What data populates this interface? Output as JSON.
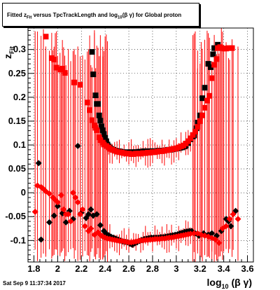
{
  "footer": {
    "timestamp": "Sat Sep  9 11:37:34 2017"
  },
  "colors": {
    "black_series": "#000000",
    "red_series": "#ff0000",
    "axis": "#000000",
    "grid": "#000000"
  },
  "chart_data": {
    "type": "scatter",
    "title": "Fitted z_Fit versus TpcTrackLength and log10(βγ) for Global proton",
    "title_parts": {
      "p1": "Fitted  z",
      "sub1": "Fit",
      "p2": " versus TpcTrackLength and log",
      "sub2": "10",
      "p3": "(β γ) for Global proton"
    },
    "xlabel": "log10(β γ)",
    "xlabel_parts": {
      "main": "log",
      "sub": "10",
      "rest": "(β γ)"
    },
    "ylabel": "z_Fit",
    "ylabel_parts": {
      "main": "z",
      "sub": "Fit"
    },
    "xlim": [
      1.75,
      3.65
    ],
    "ylim": [
      -0.145,
      0.345
    ],
    "grid": true,
    "x_ticks": [
      1.8,
      2.0,
      2.2,
      2.4,
      2.6,
      2.8,
      3.0,
      3.2,
      3.4,
      3.6
    ],
    "x_tick_labels": [
      "1.8",
      "2",
      "2.2",
      "2.4",
      "2.6",
      "2.8",
      "3",
      "3.2",
      "3.4",
      "3.6"
    ],
    "y_ticks": [
      -0.1,
      -0.05,
      0.0,
      0.05,
      0.1,
      0.15,
      0.2,
      0.25,
      0.3
    ],
    "y_tick_labels": [
      "-0.1",
      "-0.05",
      "0",
      "0.05",
      "0.1",
      "0.15",
      "0.2",
      "0.25",
      "0.3"
    ],
    "series": [
      {
        "marker": "square",
        "color": "#000000",
        "errors": "none",
        "points": [
          [
            2.29,
            0.295
          ],
          [
            2.3,
            0.248
          ],
          [
            2.32,
            0.204
          ],
          [
            2.33,
            0.186
          ],
          [
            2.34,
            0.186
          ],
          [
            2.35,
            0.162
          ],
          [
            2.36,
            0.151
          ],
          [
            2.37,
            0.139
          ],
          [
            2.38,
            0.131
          ],
          [
            2.39,
            0.123
          ],
          [
            2.4,
            0.115
          ],
          [
            2.41,
            0.108
          ],
          [
            2.42,
            0.101
          ],
          [
            2.43,
            0.097
          ],
          [
            2.44,
            0.094
          ],
          [
            2.45,
            0.092
          ],
          [
            2.47,
            0.09
          ],
          [
            2.49,
            0.088
          ],
          [
            2.51,
            0.087
          ],
          [
            2.53,
            0.086
          ],
          [
            2.55,
            0.085
          ],
          [
            2.57,
            0.084
          ],
          [
            2.59,
            0.085
          ],
          [
            2.61,
            0.084
          ],
          [
            2.63,
            0.085
          ],
          [
            2.65,
            0.085
          ],
          [
            2.67,
            0.085
          ],
          [
            2.69,
            0.086
          ],
          [
            2.71,
            0.086
          ],
          [
            2.73,
            0.087
          ],
          [
            2.75,
            0.086
          ],
          [
            2.77,
            0.087
          ],
          [
            2.79,
            0.087
          ],
          [
            2.81,
            0.087
          ],
          [
            2.83,
            0.087
          ],
          [
            2.85,
            0.088
          ],
          [
            2.87,
            0.088
          ],
          [
            2.89,
            0.088
          ],
          [
            2.91,
            0.089
          ],
          [
            2.93,
            0.09
          ],
          [
            2.95,
            0.09
          ],
          [
            2.97,
            0.091
          ],
          [
            2.99,
            0.092
          ],
          [
            3.01,
            0.093
          ],
          [
            3.03,
            0.094
          ],
          [
            3.05,
            0.095
          ],
          [
            3.07,
            0.097
          ],
          [
            3.08,
            0.099
          ],
          [
            3.1,
            0.104
          ],
          [
            3.12,
            0.112
          ],
          [
            3.14,
            0.118
          ],
          [
            3.15,
            0.12
          ],
          [
            3.16,
            0.128
          ],
          [
            3.17,
            0.135
          ],
          [
            3.18,
            0.147
          ],
          [
            3.2,
            0.162
          ],
          [
            3.22,
            0.198
          ],
          [
            3.24,
            0.22
          ],
          [
            3.27,
            0.27
          ],
          [
            3.29,
            0.263
          ],
          [
            3.31,
            0.29
          ],
          [
            3.32,
            0.303
          ],
          [
            3.35,
            0.31
          ]
        ]
      },
      {
        "marker": "square",
        "color": "#ff0000",
        "errors": "vertical",
        "points": [
          [
            1.9,
            0.327
          ],
          [
            1.95,
            0.282
          ],
          [
            1.97,
            0.279
          ],
          [
            1.99,
            0.262
          ],
          [
            2.02,
            0.258
          ],
          [
            2.04,
            0.26
          ],
          [
            2.06,
            0.251
          ],
          [
            2.14,
            0.231
          ],
          [
            2.19,
            0.226
          ],
          [
            2.25,
            0.189
          ],
          [
            2.27,
            0.173
          ],
          [
            2.29,
            0.152
          ],
          [
            2.31,
            0.141
          ],
          [
            2.32,
            0.136
          ],
          [
            2.33,
            0.131
          ],
          [
            2.35,
            0.116
          ],
          [
            2.36,
            0.11
          ],
          [
            2.38,
            0.105
          ],
          [
            2.39,
            0.101
          ],
          [
            2.41,
            0.098
          ],
          [
            2.43,
            0.095
          ],
          [
            2.44,
            0.092
          ],
          [
            2.46,
            0.09
          ],
          [
            2.48,
            0.088
          ],
          [
            2.5,
            0.086
          ],
          [
            2.52,
            0.085
          ],
          [
            2.54,
            0.084
          ],
          [
            2.56,
            0.083
          ],
          [
            2.58,
            0.082
          ],
          [
            2.6,
            0.082
          ],
          [
            2.62,
            0.081
          ],
          [
            2.64,
            0.081
          ],
          [
            2.66,
            0.082
          ],
          [
            2.68,
            0.082
          ],
          [
            2.7,
            0.082
          ],
          [
            2.72,
            0.083
          ],
          [
            2.74,
            0.083
          ],
          [
            2.76,
            0.084
          ],
          [
            2.78,
            0.084
          ],
          [
            2.8,
            0.085
          ],
          [
            2.82,
            0.085
          ],
          [
            2.84,
            0.086
          ],
          [
            2.86,
            0.087
          ],
          [
            2.88,
            0.087
          ],
          [
            2.9,
            0.088
          ],
          [
            2.92,
            0.089
          ],
          [
            2.94,
            0.09
          ],
          [
            2.96,
            0.091
          ],
          [
            2.98,
            0.092
          ],
          [
            3.0,
            0.093
          ],
          [
            3.02,
            0.095
          ],
          [
            3.04,
            0.097
          ],
          [
            3.06,
            0.099
          ],
          [
            3.08,
            0.103
          ],
          [
            3.1,
            0.108
          ],
          [
            3.12,
            0.114
          ],
          [
            3.14,
            0.121
          ],
          [
            3.16,
            0.128
          ],
          [
            3.18,
            0.138
          ],
          [
            3.2,
            0.15
          ],
          [
            3.22,
            0.162
          ],
          [
            3.24,
            0.178
          ],
          [
            3.26,
            0.193
          ],
          [
            3.28,
            0.203
          ],
          [
            3.3,
            0.24
          ],
          [
            3.32,
            0.268
          ],
          [
            3.34,
            0.28
          ],
          [
            3.35,
            0.303
          ],
          [
            3.37,
            0.305
          ],
          [
            3.38,
            0.303
          ],
          [
            3.4,
            0.302
          ],
          [
            3.42,
            0.302
          ],
          [
            3.44,
            0.303
          ],
          [
            3.47,
            0.303
          ]
        ]
      },
      {
        "marker": "diamond",
        "color": "#000000",
        "errors": "none",
        "points": [
          [
            1.84,
            0.062
          ],
          [
            1.86,
            -0.098
          ],
          [
            1.93,
            -0.062
          ],
          [
            1.97,
            -0.048
          ],
          [
            2.0,
            -0.028
          ],
          [
            2.04,
            -0.043
          ],
          [
            2.07,
            -0.062
          ],
          [
            2.1,
            -0.038
          ],
          [
            2.13,
            -0.055
          ],
          [
            2.17,
            0.098
          ],
          [
            2.2,
            -0.042
          ],
          [
            2.24,
            -0.053
          ],
          [
            2.26,
            -0.045
          ],
          [
            2.28,
            -0.035
          ],
          [
            2.3,
            -0.048
          ],
          [
            2.33,
            -0.045
          ],
          [
            2.36,
            -0.068
          ],
          [
            2.39,
            -0.08
          ],
          [
            2.41,
            -0.086
          ],
          [
            2.43,
            -0.089
          ],
          [
            2.45,
            -0.092
          ],
          [
            2.47,
            -0.094
          ],
          [
            2.49,
            -0.096
          ],
          [
            2.51,
            -0.098
          ],
          [
            2.53,
            -0.1
          ],
          [
            2.55,
            -0.102
          ],
          [
            2.57,
            -0.103
          ],
          [
            2.59,
            -0.104
          ],
          [
            2.61,
            -0.107
          ],
          [
            2.63,
            -0.109
          ],
          [
            2.65,
            -0.106
          ],
          [
            2.67,
            -0.104
          ],
          [
            2.69,
            -0.101
          ],
          [
            2.71,
            -0.099
          ],
          [
            2.73,
            -0.097
          ],
          [
            2.75,
            -0.096
          ],
          [
            2.77,
            -0.095
          ],
          [
            2.79,
            -0.094
          ],
          [
            2.81,
            -0.094
          ],
          [
            2.83,
            -0.094
          ],
          [
            2.85,
            -0.094
          ],
          [
            2.87,
            -0.093
          ],
          [
            2.89,
            -0.093
          ],
          [
            2.91,
            -0.092
          ],
          [
            2.93,
            -0.091
          ],
          [
            2.95,
            -0.09
          ],
          [
            2.97,
            -0.089
          ],
          [
            2.99,
            -0.088
          ],
          [
            3.01,
            -0.087
          ],
          [
            3.03,
            -0.085
          ],
          [
            3.05,
            -0.084
          ],
          [
            3.07,
            -0.082
          ],
          [
            3.09,
            -0.081
          ],
          [
            3.11,
            -0.08
          ],
          [
            3.13,
            -0.08
          ],
          [
            3.16,
            -0.085
          ],
          [
            3.19,
            -0.09
          ],
          [
            3.23,
            -0.085
          ],
          [
            3.27,
            -0.088
          ],
          [
            3.3,
            -0.085
          ],
          [
            3.34,
            -0.09
          ],
          [
            3.38,
            -0.08
          ],
          [
            3.42,
            -0.055
          ],
          [
            3.44,
            -0.06
          ],
          [
            3.46,
            -0.07
          ],
          [
            3.5,
            -0.038
          ]
        ]
      },
      {
        "marker": "diamond",
        "color": "#ff0000",
        "errors": "vertical",
        "points": [
          [
            1.81,
            -0.04
          ],
          [
            1.83,
            0.015
          ],
          [
            1.86,
            0.012
          ],
          [
            1.88,
            0.008
          ],
          [
            1.9,
            0.003
          ],
          [
            1.93,
            -0.002
          ],
          [
            1.96,
            -0.01
          ],
          [
            1.98,
            -0.015
          ],
          [
            2.0,
            -0.02
          ],
          [
            2.03,
            -0.005
          ],
          [
            2.05,
            -0.035
          ],
          [
            2.07,
            -0.045
          ],
          [
            2.09,
            -0.045
          ],
          [
            2.11,
            -0.06
          ],
          [
            2.13,
            0.0
          ],
          [
            2.15,
            -0.01
          ],
          [
            2.17,
            -0.02
          ],
          [
            2.19,
            -0.045
          ],
          [
            2.21,
            -0.035
          ],
          [
            2.23,
            -0.07
          ],
          [
            2.26,
            -0.08
          ],
          [
            2.28,
            -0.075
          ],
          [
            2.31,
            -0.088
          ],
          [
            2.34,
            -0.083
          ],
          [
            2.36,
            -0.088
          ],
          [
            2.38,
            -0.092
          ],
          [
            2.4,
            -0.094
          ],
          [
            2.42,
            -0.096
          ],
          [
            2.44,
            -0.097
          ],
          [
            2.46,
            -0.098
          ],
          [
            2.48,
            -0.099
          ],
          [
            2.5,
            -0.1
          ],
          [
            2.52,
            -0.101
          ],
          [
            2.54,
            -0.101
          ],
          [
            2.56,
            -0.102
          ],
          [
            2.58,
            -0.103
          ],
          [
            2.6,
            -0.104
          ],
          [
            2.62,
            -0.104
          ],
          [
            2.64,
            -0.103
          ],
          [
            2.66,
            -0.102
          ],
          [
            2.68,
            -0.101
          ],
          [
            2.7,
            -0.1
          ],
          [
            2.72,
            -0.1
          ],
          [
            2.74,
            -0.099
          ],
          [
            2.76,
            -0.099
          ],
          [
            2.78,
            -0.098
          ],
          [
            2.8,
            -0.098
          ],
          [
            2.82,
            -0.097
          ],
          [
            2.84,
            -0.097
          ],
          [
            2.86,
            -0.097
          ],
          [
            2.88,
            -0.096
          ],
          [
            2.9,
            -0.096
          ],
          [
            2.92,
            -0.095
          ],
          [
            2.94,
            -0.094
          ],
          [
            2.96,
            -0.094
          ],
          [
            2.98,
            -0.093
          ],
          [
            3.0,
            -0.092
          ],
          [
            3.02,
            -0.091
          ],
          [
            3.04,
            -0.09
          ],
          [
            3.06,
            -0.089
          ],
          [
            3.08,
            -0.088
          ],
          [
            3.1,
            -0.087
          ],
          [
            3.12,
            -0.086
          ],
          [
            3.15,
            -0.085
          ],
          [
            3.18,
            -0.085
          ],
          [
            3.21,
            -0.088
          ],
          [
            3.24,
            -0.09
          ],
          [
            3.27,
            -0.092
          ],
          [
            3.3,
            -0.095
          ],
          [
            3.33,
            -0.098
          ],
          [
            3.36,
            -0.105
          ],
          [
            3.39,
            -0.075
          ],
          [
            3.42,
            -0.07
          ],
          [
            3.45,
            -0.055
          ],
          [
            3.48,
            -0.045
          ],
          [
            3.52,
            -0.055
          ]
        ]
      }
    ]
  }
}
